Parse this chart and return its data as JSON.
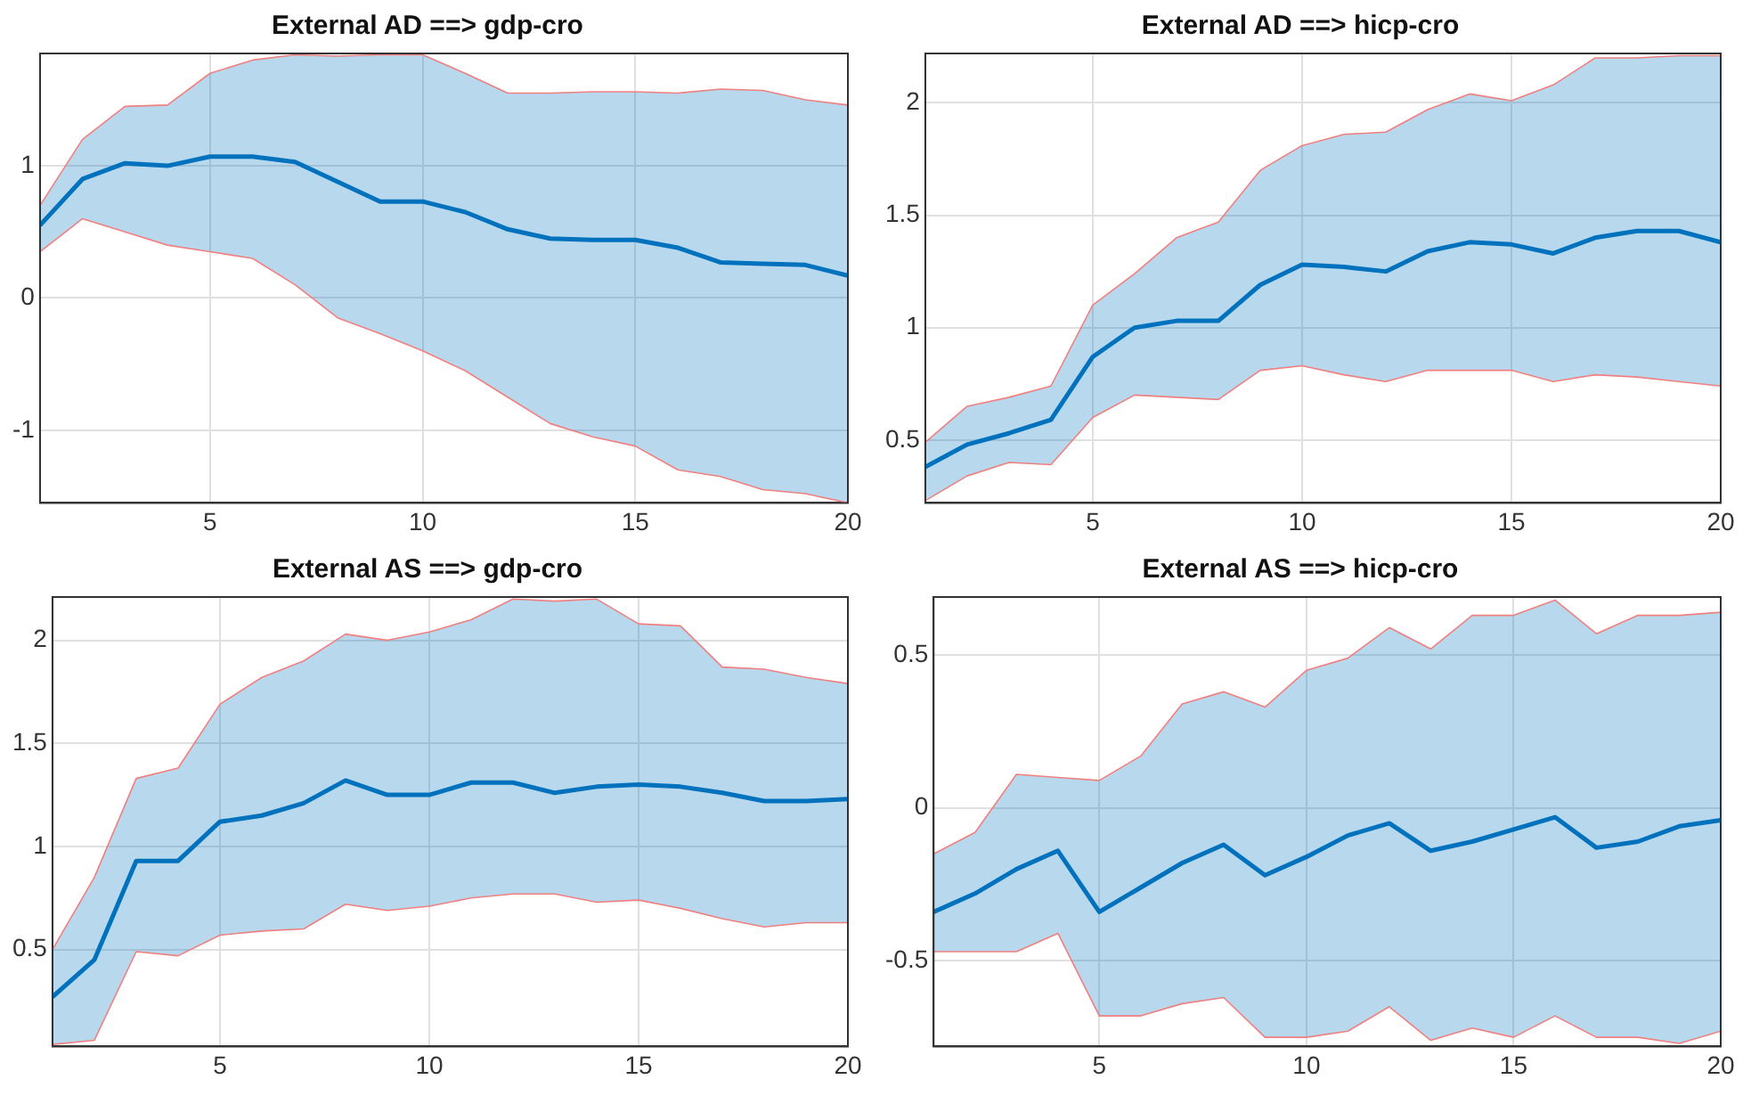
{
  "chart_data": [
    {
      "type": "line",
      "title": "External AD ==> gdp-cro",
      "x": [
        1,
        2,
        3,
        4,
        5,
        6,
        7,
        8,
        9,
        10,
        11,
        12,
        13,
        14,
        15,
        16,
        17,
        18,
        19,
        20
      ],
      "xlim": [
        1,
        20
      ],
      "xticks": [
        5,
        10,
        15,
        20
      ],
      "ylim": [
        -1.55,
        1.85
      ],
      "yticks": [
        -1,
        0,
        1
      ],
      "grid": true,
      "series": [
        {
          "color": "#0072bd",
          "values": [
            0.55,
            0.9,
            1.02,
            1.0,
            1.07,
            1.07,
            1.03,
            0.88,
            0.73,
            0.73,
            0.65,
            0.52,
            0.45,
            0.44,
            0.44,
            0.38,
            0.27,
            0.26,
            0.25,
            0.17
          ],
          "upper": [
            0.7,
            1.2,
            1.45,
            1.46,
            1.7,
            1.8,
            1.84,
            1.83,
            1.84,
            1.84,
            1.7,
            1.55,
            1.55,
            1.56,
            1.56,
            1.55,
            1.58,
            1.57,
            1.5,
            1.46
          ],
          "lower": [
            0.35,
            0.6,
            0.5,
            0.4,
            0.35,
            0.3,
            0.1,
            -0.15,
            -0.27,
            -0.4,
            -0.55,
            -0.75,
            -0.95,
            -1.05,
            -1.12,
            -1.3,
            -1.35,
            -1.45,
            -1.48,
            -1.55
          ]
        },
        {
          "color": "#f08080",
          "values": [
            0.7,
            1.2,
            1.45,
            1.46,
            1.7,
            1.8,
            1.84,
            1.83,
            1.84,
            1.84,
            1.7,
            1.55,
            1.55,
            1.56,
            1.56,
            1.55,
            1.58,
            1.57,
            1.5,
            1.46
          ]
        },
        {
          "color": "#f08080",
          "values": [
            0.35,
            0.6,
            0.5,
            0.4,
            0.35,
            0.3,
            0.1,
            -0.15,
            -0.27,
            -0.4,
            -0.55,
            -0.75,
            -0.95,
            -1.05,
            -1.12,
            -1.3,
            -1.35,
            -1.45,
            -1.48,
            -1.55
          ]
        }
      ]
    },
    {
      "type": "line",
      "title": "External AD ==> hicp-cro",
      "x": [
        1,
        2,
        3,
        4,
        5,
        6,
        7,
        8,
        9,
        10,
        11,
        12,
        13,
        14,
        15,
        16,
        17,
        18,
        19,
        20
      ],
      "xlim": [
        1,
        20
      ],
      "xticks": [
        5,
        10,
        15,
        20
      ],
      "ylim": [
        0.22,
        2.22
      ],
      "yticks": [
        0.5,
        1,
        1.5,
        2
      ],
      "grid": true,
      "series": [
        {
          "color": "#0072bd",
          "values": [
            0.38,
            0.48,
            0.53,
            0.59,
            0.87,
            1.0,
            1.03,
            1.03,
            1.19,
            1.28,
            1.27,
            1.25,
            1.34,
            1.38,
            1.37,
            1.33,
            1.4,
            1.43,
            1.43,
            1.38
          ],
          "upper": [
            0.49,
            0.65,
            0.69,
            0.74,
            1.1,
            1.24,
            1.4,
            1.47,
            1.7,
            1.81,
            1.86,
            1.87,
            1.97,
            2.04,
            2.01,
            2.08,
            2.2,
            2.2,
            2.21,
            2.21
          ],
          "lower": [
            0.23,
            0.34,
            0.4,
            0.39,
            0.6,
            0.7,
            0.69,
            0.68,
            0.81,
            0.83,
            0.79,
            0.76,
            0.81,
            0.81,
            0.81,
            0.76,
            0.79,
            0.78,
            0.76,
            0.74
          ]
        },
        {
          "color": "#f08080",
          "values": [
            0.49,
            0.65,
            0.69,
            0.74,
            1.1,
            1.24,
            1.4,
            1.47,
            1.7,
            1.81,
            1.86,
            1.87,
            1.97,
            2.04,
            2.01,
            2.08,
            2.2,
            2.2,
            2.21,
            2.21
          ]
        },
        {
          "color": "#f08080",
          "values": [
            0.23,
            0.34,
            0.4,
            0.39,
            0.6,
            0.7,
            0.69,
            0.68,
            0.81,
            0.83,
            0.79,
            0.76,
            0.81,
            0.81,
            0.81,
            0.76,
            0.79,
            0.78,
            0.76,
            0.74
          ]
        }
      ]
    },
    {
      "type": "line",
      "title": "External AS ==> gdp-cro",
      "x": [
        1,
        2,
        3,
        4,
        5,
        6,
        7,
        8,
        9,
        10,
        11,
        12,
        13,
        14,
        15,
        16,
        17,
        18,
        19,
        20
      ],
      "xlim": [
        1,
        20
      ],
      "xticks": [
        5,
        10,
        15,
        20
      ],
      "ylim": [
        0.03,
        2.21
      ],
      "yticks": [
        0.5,
        1,
        1.5,
        2
      ],
      "grid": true,
      "series": [
        {
          "color": "#0072bd",
          "values": [
            0.27,
            0.45,
            0.93,
            0.93,
            1.12,
            1.15,
            1.21,
            1.32,
            1.25,
            1.25,
            1.31,
            1.31,
            1.26,
            1.29,
            1.3,
            1.29,
            1.26,
            1.22,
            1.22,
            1.23
          ],
          "upper": [
            0.5,
            0.85,
            1.33,
            1.38,
            1.69,
            1.82,
            1.9,
            2.03,
            2.0,
            2.04,
            2.1,
            2.2,
            2.19,
            2.2,
            2.08,
            2.07,
            1.87,
            1.86,
            1.82,
            1.79
          ],
          "lower": [
            0.04,
            0.06,
            0.49,
            0.47,
            0.57,
            0.59,
            0.6,
            0.72,
            0.69,
            0.71,
            0.75,
            0.77,
            0.77,
            0.73,
            0.74,
            0.7,
            0.65,
            0.61,
            0.63,
            0.63
          ]
        },
        {
          "color": "#f08080",
          "values": [
            0.5,
            0.85,
            1.33,
            1.38,
            1.69,
            1.82,
            1.9,
            2.03,
            2.0,
            2.04,
            2.1,
            2.2,
            2.19,
            2.2,
            2.08,
            2.07,
            1.87,
            1.86,
            1.82,
            1.79
          ]
        },
        {
          "color": "#f08080",
          "values": [
            0.04,
            0.06,
            0.49,
            0.47,
            0.57,
            0.59,
            0.6,
            0.72,
            0.69,
            0.71,
            0.75,
            0.77,
            0.77,
            0.73,
            0.74,
            0.7,
            0.65,
            0.61,
            0.63,
            0.63
          ]
        }
      ]
    },
    {
      "type": "line",
      "title": "External AS ==> hicp-cro",
      "x": [
        1,
        2,
        3,
        4,
        5,
        6,
        7,
        8,
        9,
        10,
        11,
        12,
        13,
        14,
        15,
        16,
        17,
        18,
        19,
        20
      ],
      "xlim": [
        1,
        20
      ],
      "xticks": [
        5,
        10,
        15,
        20
      ],
      "ylim": [
        -0.78,
        0.69
      ],
      "yticks": [
        -0.5,
        0,
        0.5
      ],
      "grid": true,
      "series": [
        {
          "color": "#0072bd",
          "values": [
            -0.34,
            -0.28,
            -0.2,
            -0.14,
            -0.34,
            -0.26,
            -0.18,
            -0.12,
            -0.22,
            -0.16,
            -0.09,
            -0.05,
            -0.14,
            -0.11,
            -0.07,
            -0.03,
            -0.13,
            -0.11,
            -0.06,
            -0.04
          ],
          "upper": [
            -0.15,
            -0.08,
            0.11,
            0.1,
            0.09,
            0.17,
            0.34,
            0.38,
            0.33,
            0.45,
            0.49,
            0.59,
            0.52,
            0.63,
            0.63,
            0.68,
            0.57,
            0.63,
            0.63,
            0.64
          ],
          "lower": [
            -0.47,
            -0.47,
            -0.47,
            -0.41,
            -0.68,
            -0.68,
            -0.64,
            -0.62,
            -0.75,
            -0.75,
            -0.73,
            -0.65,
            -0.76,
            -0.72,
            -0.75,
            -0.68,
            -0.75,
            -0.75,
            -0.77,
            -0.73
          ]
        },
        {
          "color": "#f08080",
          "values": [
            -0.15,
            -0.08,
            0.11,
            0.1,
            0.09,
            0.17,
            0.34,
            0.38,
            0.33,
            0.45,
            0.49,
            0.59,
            0.52,
            0.63,
            0.63,
            0.68,
            0.57,
            0.63,
            0.63,
            0.64
          ]
        },
        {
          "color": "#f08080",
          "values": [
            -0.47,
            -0.47,
            -0.47,
            -0.41,
            -0.68,
            -0.68,
            -0.64,
            -0.62,
            -0.75,
            -0.75,
            -0.73,
            -0.65,
            -0.76,
            -0.72,
            -0.75,
            -0.68,
            -0.75,
            -0.75,
            -0.77,
            -0.73
          ]
        }
      ]
    }
  ]
}
